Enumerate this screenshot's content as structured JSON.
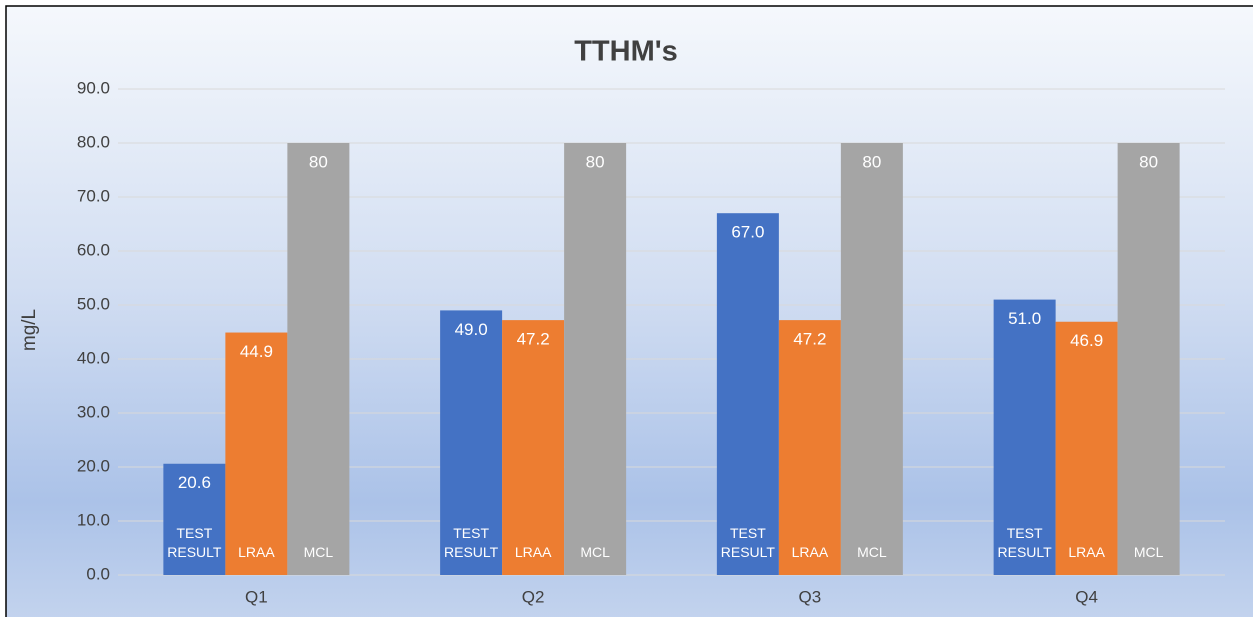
{
  "chart_data": {
    "type": "bar",
    "title": "TTHM's",
    "y_label": "mg/L",
    "categories": [
      "Q1",
      "Q2",
      "Q3",
      "Q4"
    ],
    "series": [
      {
        "name": "TEST RESULT",
        "color": "#4472c4",
        "values": [
          20.6,
          49.0,
          67.0,
          51.0
        ],
        "value_labels": [
          "20.6",
          "49.0",
          "67.0",
          "51.0"
        ]
      },
      {
        "name": "LRAA",
        "color": "#ed7d31",
        "values": [
          44.9,
          47.2,
          47.2,
          46.9
        ],
        "value_labels": [
          "44.9",
          "47.2",
          "47.2",
          "46.9"
        ]
      },
      {
        "name": "MCL",
        "color": "#a5a5a5",
        "values": [
          80,
          80,
          80,
          80
        ],
        "value_labels": [
          "80",
          "80",
          "80",
          "80"
        ]
      }
    ],
    "ylim": [
      0,
      90
    ],
    "yticks": [
      {
        "value": 0,
        "label": "0.0"
      },
      {
        "value": 10,
        "label": "10.0"
      },
      {
        "value": 20,
        "label": "20.0"
      },
      {
        "value": 30,
        "label": "30.0"
      },
      {
        "value": 40,
        "label": "40.0"
      },
      {
        "value": 50,
        "label": "50.0"
      },
      {
        "value": 60,
        "label": "60.0"
      },
      {
        "value": 70,
        "label": "70.0"
      },
      {
        "value": 80,
        "label": "80.0"
      },
      {
        "value": 90,
        "label": "90.0"
      }
    ],
    "grid": true
  }
}
